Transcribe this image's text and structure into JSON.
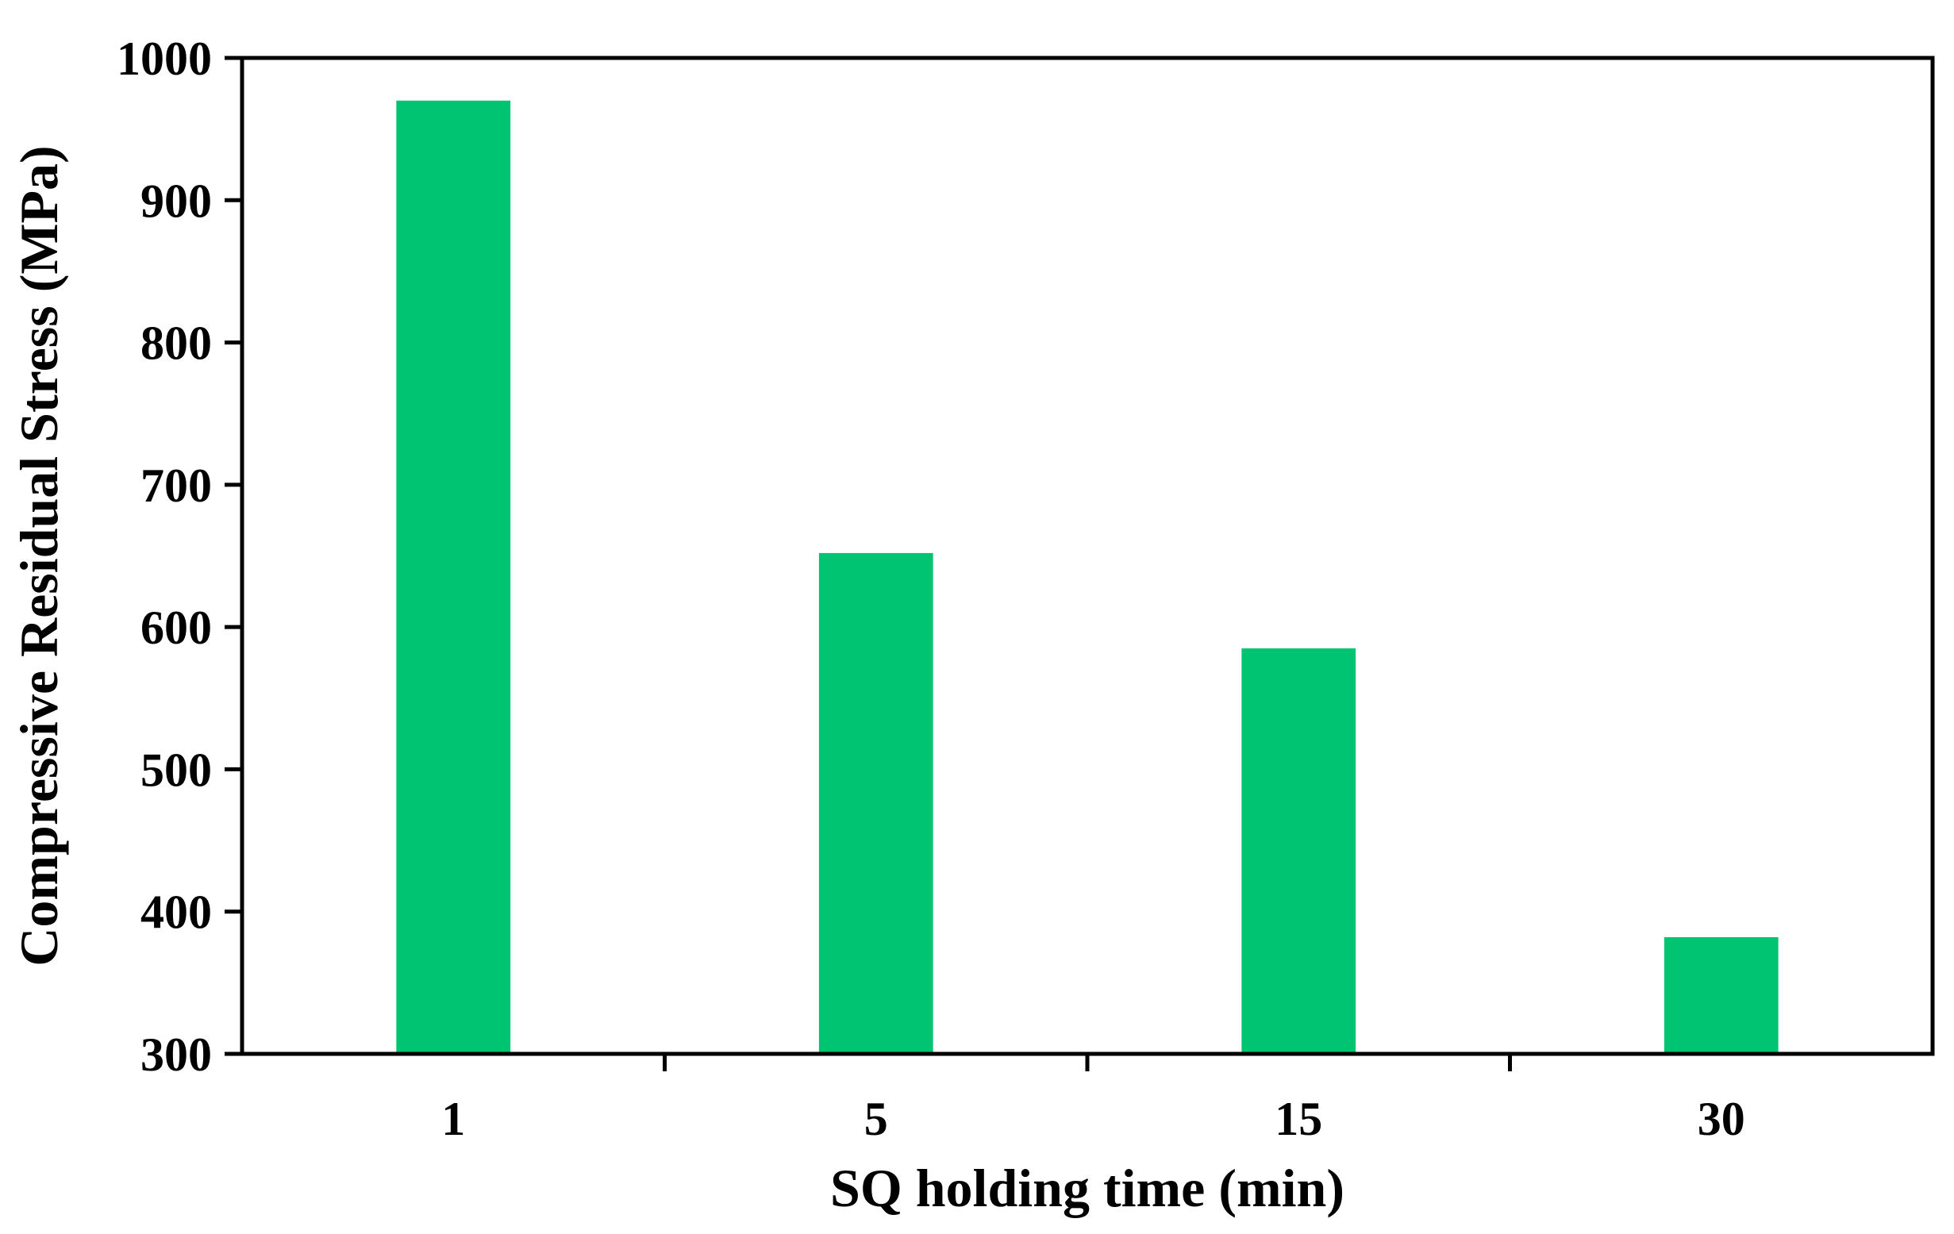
{
  "chart_data": {
    "type": "bar",
    "title": "",
    "xlabel": "SQ holding time (min)",
    "ylabel": "Compressive Residual Stress (MPa)",
    "categories": [
      "1",
      "5",
      "15",
      "30"
    ],
    "values": [
      970,
      652,
      585,
      382
    ],
    "ylim": [
      300,
      1000
    ],
    "yticks": [
      "300",
      "400",
      "500",
      "600",
      "700",
      "800",
      "900",
      "1000"
    ],
    "grid": false,
    "legend": "none",
    "bar_color": "#00c472"
  }
}
